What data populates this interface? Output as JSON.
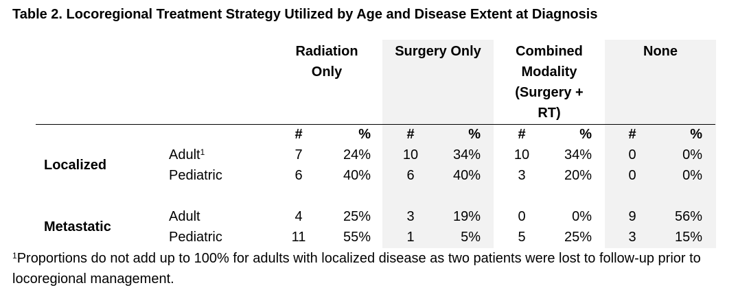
{
  "title": "Table 2. Locoregional Treatment Strategy Utilized by Age and Disease Extent at Diagnosis",
  "column_groups": [
    {
      "lines": [
        "Radiation",
        "Only"
      ],
      "shaded": false
    },
    {
      "lines": [
        "Surgery Only"
      ],
      "shaded": true
    },
    {
      "lines": [
        "Combined",
        "Modality",
        "(Surgery +",
        "RT)"
      ],
      "shaded": false
    },
    {
      "lines": [
        "None"
      ],
      "shaded": true
    }
  ],
  "subheaders": {
    "count": "#",
    "percent": "%"
  },
  "rows": [
    {
      "group": "Localized",
      "label": "Adult",
      "label_sup": "1",
      "values": [
        "7",
        "24%",
        "10",
        "34%",
        "10",
        "34%",
        "0",
        "0%"
      ]
    },
    {
      "group": "",
      "label": "Pediatric",
      "label_sup": "",
      "values": [
        "6",
        "40%",
        "6",
        "40%",
        "3",
        "20%",
        "0",
        "0%"
      ]
    },
    {
      "group": "Metastatic",
      "label": "Adult",
      "label_sup": "",
      "values": [
        "4",
        "25%",
        "3",
        "19%",
        "0",
        "0%",
        "9",
        "56%"
      ]
    },
    {
      "group": "",
      "label": "Pediatric",
      "label_sup": "",
      "values": [
        "11",
        "55%",
        "1",
        "5%",
        "5",
        "25%",
        "3",
        "15%"
      ]
    }
  ],
  "row_groups": [
    "Localized",
    "Metastatic"
  ],
  "footnote": {
    "marker": "1",
    "text": "Proportions do not add up to 100% for adults with localized disease as two patients were lost to follow-up prior to locoregional management."
  },
  "colors": {
    "shade": "#f2f2f2",
    "text": "#000000"
  }
}
